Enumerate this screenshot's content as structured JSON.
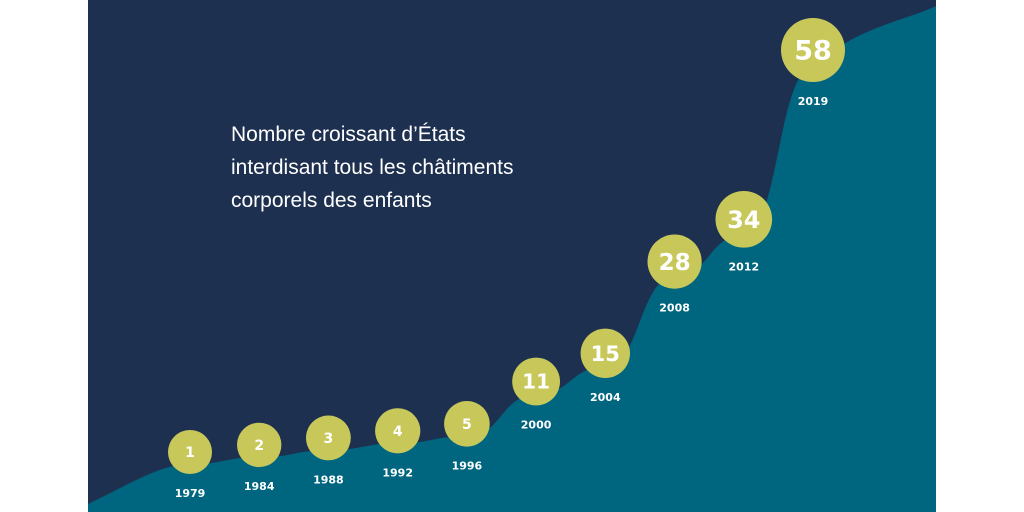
{
  "title_lines": [
    "Nombre croissant d’États",
    "interdisant tous les châtiments",
    "corporels des enfants"
  ],
  "colors": {
    "background": "#1e3050",
    "area": "#006680",
    "bubble": "#c8c85a",
    "text": "#ffffff"
  },
  "chart_data": {
    "type": "area",
    "title": "Nombre croissant d’États interdisant tous les châtiments corporels des enfants",
    "x": [
      "1979",
      "1984",
      "1988",
      "1992",
      "1996",
      "2000",
      "2004",
      "2008",
      "2012",
      "2019"
    ],
    "values": [
      1,
      2,
      3,
      4,
      5,
      11,
      15,
      28,
      34,
      58
    ],
    "data_labels": [
      "1",
      "2",
      "3",
      "4",
      "5",
      "11",
      "15",
      "28",
      "34",
      "58"
    ],
    "grid": false,
    "legend": "none"
  }
}
